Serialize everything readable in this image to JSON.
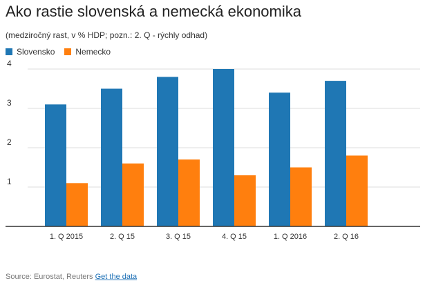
{
  "title": "Ako rastie slovenská a nemecká ekonomika",
  "subtitle": "(medziročný rast, v % HDP; pozn.: 2. Q - rýchly odhad)",
  "source": {
    "text": "Source: Eurostat, Reuters",
    "link": "Get the data"
  },
  "chart_data": {
    "type": "bar",
    "categories": [
      "1. Q 2015",
      "2. Q 15",
      "3. Q 15",
      "4. Q 15",
      "1. Q 2016",
      "2. Q 16"
    ],
    "series": [
      {
        "name": "Slovensko",
        "color": "#1f77b4",
        "values": [
          3.1,
          3.5,
          3.8,
          4.0,
          3.4,
          3.7
        ]
      },
      {
        "name": "Nemecko",
        "color": "#ff7f0e",
        "values": [
          1.1,
          1.6,
          1.7,
          1.3,
          1.5,
          1.8
        ]
      }
    ],
    "ylim": [
      0,
      4
    ],
    "yticks": [
      "1",
      "2",
      "3",
      "4"
    ],
    "grid": true,
    "legend": "top-left"
  }
}
